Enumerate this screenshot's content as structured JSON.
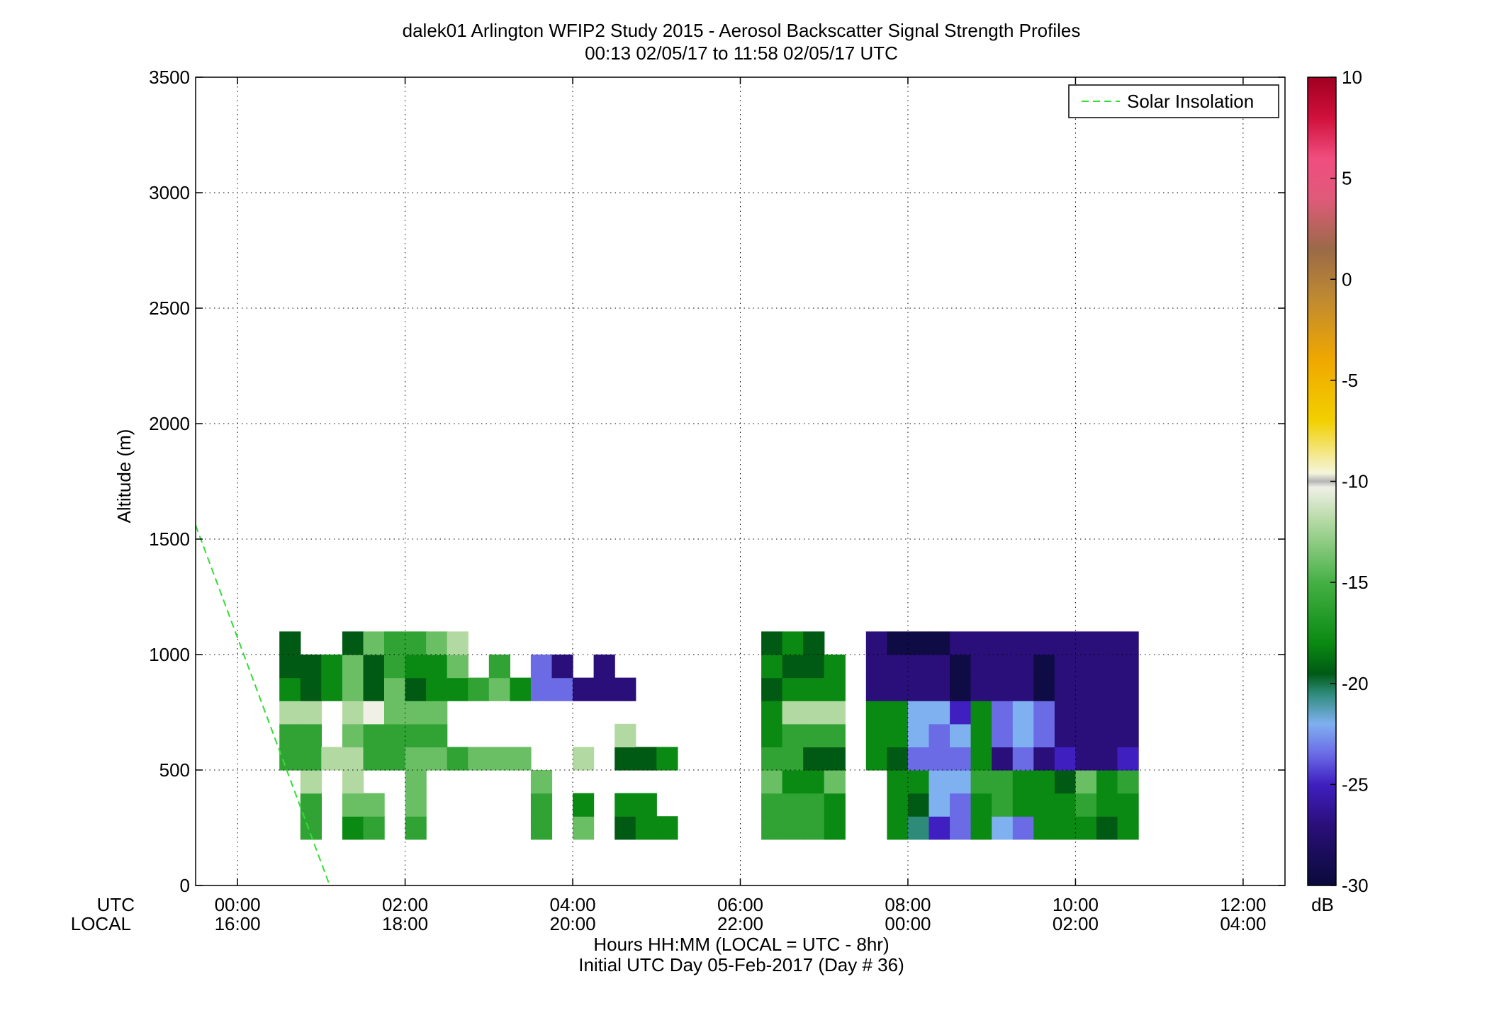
{
  "chart_data": {
    "type": "heatmap",
    "title": "dalek01 Arlington WFIP2 Study 2015 - Aerosol Backscatter Signal Strength Profiles",
    "subtitle": "00:13 02/05/17 to 11:58 02/05/17  UTC",
    "ylabel": "Altitude (m)",
    "xlabel": "Hours HH:MM  (LOCAL = UTC - 8hr)",
    "xlabel2": "Initial UTC Day 05-Feb-2017 (Day # 36)",
    "utc_row_label": "UTC",
    "local_row_label": "LOCAL",
    "xlim_hours_utc": [
      -0.5,
      12.5
    ],
    "ylim": [
      0,
      3500
    ],
    "grid": true,
    "x_ticks": [
      {
        "utc": "00:00",
        "local": "16:00",
        "hour": 0
      },
      {
        "utc": "02:00",
        "local": "18:00",
        "hour": 2
      },
      {
        "utc": "04:00",
        "local": "20:00",
        "hour": 4
      },
      {
        "utc": "06:00",
        "local": "22:00",
        "hour": 6
      },
      {
        "utc": "08:00",
        "local": "00:00",
        "hour": 8
      },
      {
        "utc": "10:00",
        "local": "02:00",
        "hour": 10
      },
      {
        "utc": "12:00",
        "local": "04:00",
        "hour": 12
      }
    ],
    "y_ticks": [
      0,
      500,
      1000,
      1500,
      2000,
      2500,
      3000,
      3500
    ],
    "legend": {
      "placement": "top-right",
      "entries": [
        {
          "label": "Solar Insolation",
          "style": "dashed",
          "color": "#33dd33"
        }
      ]
    },
    "solar_insolation": {
      "x_hours": [
        -0.5,
        1.1
      ],
      "y": [
        1560,
        0
      ]
    },
    "colorbar": {
      "unit": "dB",
      "range": [
        -30,
        10
      ],
      "ticks": [
        10,
        5,
        0,
        -5,
        -10,
        -15,
        -20,
        -25,
        -30
      ],
      "stops": [
        {
          "v": -30,
          "c": "#0a0a3a"
        },
        {
          "v": -27,
          "c": "#2a0f7a"
        },
        {
          "v": -25,
          "c": "#3f1fc0"
        },
        {
          "v": -23.5,
          "c": "#6b6be6"
        },
        {
          "v": -22,
          "c": "#7fb0f0"
        },
        {
          "v": -20.5,
          "c": "#2e8b7a"
        },
        {
          "v": -19.5,
          "c": "#005a14"
        },
        {
          "v": -18,
          "c": "#0a8a12"
        },
        {
          "v": -15,
          "c": "#45b045"
        },
        {
          "v": -12,
          "c": "#b3d9a3"
        },
        {
          "v": -10.3,
          "c": "#f0f0e6"
        },
        {
          "v": -10,
          "c": "#b5b5b5"
        },
        {
          "v": -9.6,
          "c": "#f5f5dc"
        },
        {
          "v": -7,
          "c": "#f2d000"
        },
        {
          "v": -4,
          "c": "#f0a800"
        },
        {
          "v": -1,
          "c": "#c08a30"
        },
        {
          "v": 1.5,
          "c": "#9a6a48"
        },
        {
          "v": 4,
          "c": "#e05a7a"
        },
        {
          "v": 6,
          "c": "#f04d7f"
        },
        {
          "v": 8,
          "c": "#d0103a"
        },
        {
          "v": 10,
          "c": "#a00020"
        }
      ]
    },
    "grid_spec": {
      "t0_hour": 0.25,
      "dt_hour": 0.25,
      "z0_m": 200,
      "dz_m": 100
    },
    "palette_dB": {
      "A": -29.5,
      "B": -27,
      "C": -25,
      "D": -23.5,
      "E": -22,
      "F": -20.5,
      "G": -19.5,
      "H": -18,
      "I": -16,
      "J": -14,
      "K": -12,
      "L": -10.3,
      "M": -10,
      "N": -9.6,
      "O": -8,
      "P": -6.5,
      "Q": -4.5,
      "R": -1.5,
      "S": 1.5,
      "T": 4,
      "U": 6,
      "V": 8
    },
    "rows": [
      [
        "",
        "",
        "IIK",
        "",
        "HJK",
        "IJ",
        "",
        "IJJ",
        "",
        "",
        "",
        "",
        "",
        "IIJ",
        "",
        "JH",
        "",
        "GH",
        "HH",
        "H",
        "",
        "",
        "",
        "",
        "IIJ",
        "IIH",
        "IIH",
        "HHJ",
        "",
        "",
        "HHH",
        "FGH",
        "CEE",
        "DDE",
        "HHI",
        "EII",
        "DHH",
        "HHH",
        "HHG",
        "HIJ",
        "GHH",
        "HHI"
      ],
      [
        "",
        "IIK",
        "IIK",
        "K",
        "KJK",
        "IIL",
        "IIJ",
        "JIJ",
        "JIJ",
        "I",
        "J",
        "J",
        "J",
        "",
        "",
        "K",
        "",
        "GK",
        "G",
        "H",
        "",
        "",
        "",
        "",
        "IHH",
        "IIK",
        "GIK",
        "GIK",
        "",
        "HHH",
        "GHH",
        "DEE",
        "DDE",
        "DEC",
        "HHH",
        "BDD",
        "DEE",
        "BDD",
        "CBB",
        "BBB",
        "BBB",
        "CBB"
      ],
      [
        "",
        "HGG",
        "GG",
        "HH",
        "JJG",
        "GGJ",
        "JII",
        "GHI",
        "HHJ",
        "HJK",
        "I",
        "JI",
        "H",
        "DD",
        "DB",
        "B",
        "BB",
        "B",
        "",
        "",
        "",
        "",
        "",
        "",
        "GHG",
        "HGH",
        "HGG",
        "HH",
        "",
        "BBB",
        "BBA",
        "BBA",
        "BBA",
        "AAB",
        "BBB",
        "BBB",
        "BBB",
        "AAB",
        "BBB",
        "BBB",
        "BBB",
        "BBB"
      ],
      [
        "",
        "",
        "",
        "",
        "",
        "",
        "",
        "",
        "",
        "",
        "",
        "",
        "",
        "",
        "",
        "",
        "",
        "",
        "",
        "",
        "",
        "",
        "",
        "",
        "",
        "",
        "",
        "",
        "",
        "",
        "",
        "",
        "",
        "",
        "",
        "",
        "",
        "",
        "",
        "",
        "",
        ""
      ]
    ]
  }
}
